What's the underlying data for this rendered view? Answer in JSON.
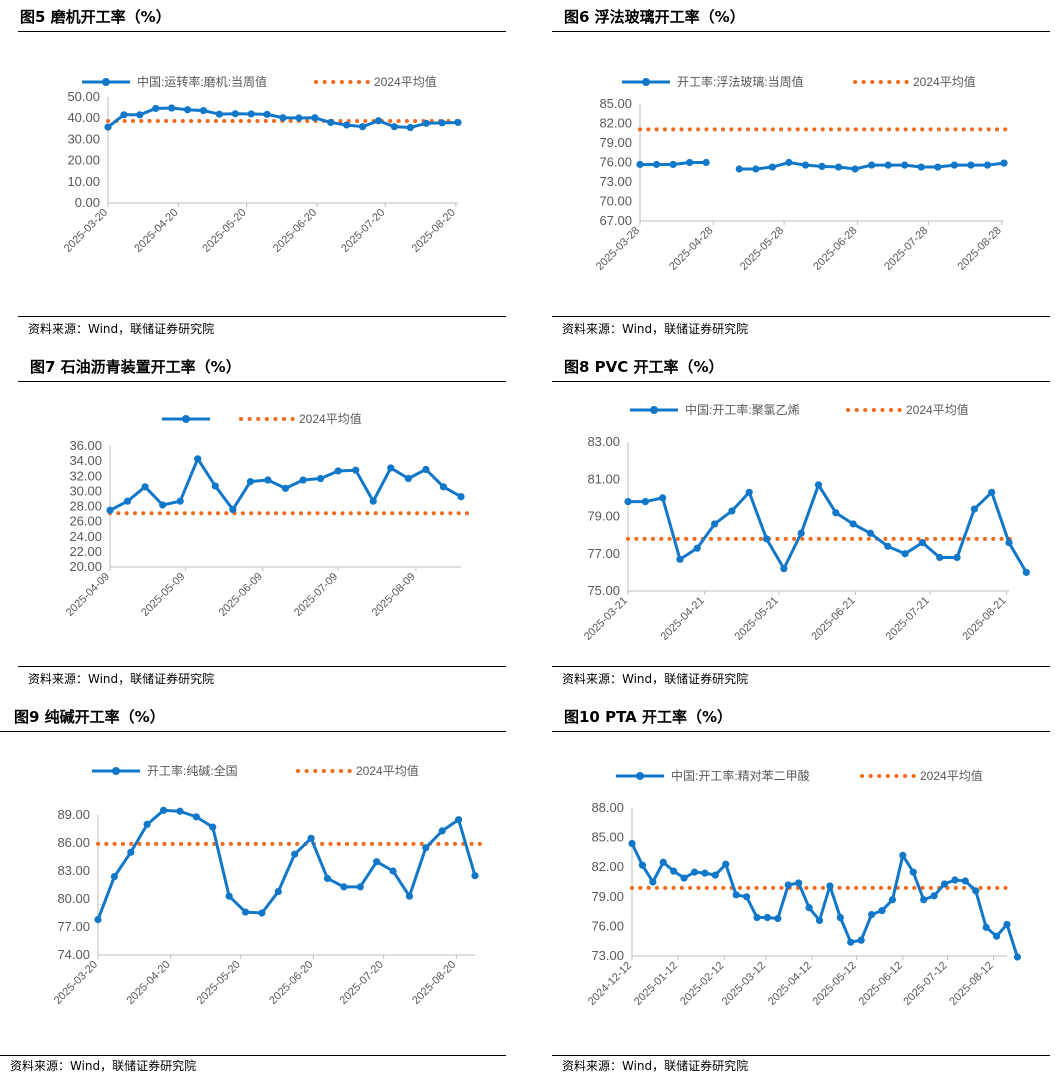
{
  "source_text": "资料来源：Wind，联储证券研究院",
  "colors": {
    "series": "#1177C9",
    "avg": "#F26B1D",
    "axis": "#BFBFBF",
    "text": "#595959"
  },
  "chart_data": [
    {
      "id": "fig5",
      "figure_title": "图5  磨机开工率（%）",
      "type": "line",
      "series_name": "中国:运转率:磨机:当周值",
      "avg_name": "2024平均值",
      "avg_value": 38.7,
      "ylim": [
        0,
        50
      ],
      "yticks": [
        0,
        10,
        20,
        30,
        40,
        50
      ],
      "x_tick_labels": [
        "2025-03-20",
        "2025-04-20",
        "2025-05-20",
        "2025-06-20",
        "2025-07-20",
        "2025-08-20"
      ],
      "x_tick_positions": [
        0,
        4.43,
        8.71,
        13.14,
        17.43,
        21.86
      ],
      "x_end": 22,
      "values": [
        35.8,
        41.6,
        41.6,
        44.6,
        44.8,
        44.0,
        43.6,
        41.9,
        42.1,
        42.0,
        41.8,
        40.2,
        40.1,
        40.2,
        38.0,
        36.8,
        36.0,
        38.8,
        36.0,
        35.6,
        37.6,
        37.8,
        38.0
      ]
    },
    {
      "id": "fig6",
      "figure_title": "图6  浮法玻璃开工率（%）",
      "type": "line",
      "series_name": "开工率:浮法玻璃:当周值",
      "avg_name": "2024平均值",
      "avg_value": 81.1,
      "ylim": [
        67,
        85
      ],
      "yticks": [
        67,
        70,
        73,
        76,
        79,
        82,
        85
      ],
      "x_tick_labels": [
        "2025-03-28",
        "2025-04-28",
        "2025-05-28",
        "2025-06-28",
        "2025-07-28",
        "2025-08-28"
      ],
      "x_tick_positions": [
        0,
        4.43,
        8.71,
        13.14,
        17.43,
        21.86
      ],
      "x_end": 22,
      "values": [
        75.7,
        75.7,
        75.7,
        76.0,
        76.0,
        null,
        75.0,
        75.0,
        75.3,
        76.0,
        75.6,
        75.4,
        75.3,
        75.0,
        75.6,
        75.6,
        75.6,
        75.3,
        75.3,
        75.6,
        75.6,
        75.6,
        75.9
      ]
    },
    {
      "id": "fig7",
      "figure_title": "图7  石油沥青装置开工率（%）",
      "type": "line",
      "series_name": "",
      "avg_name": "2024平均值",
      "avg_value": 27.1,
      "ylim": [
        20,
        36
      ],
      "yticks": [
        20,
        22,
        24,
        26,
        28,
        30,
        32,
        34,
        36
      ],
      "x_tick_labels": [
        "2025-04-09",
        "2025-05-09",
        "2025-06-09",
        "2025-07-09",
        "2025-08-09"
      ],
      "x_tick_positions": [
        0,
        4.29,
        8.71,
        13,
        17.43
      ],
      "x_end": 20,
      "values": [
        27.5,
        28.7,
        30.6,
        28.2,
        28.7,
        34.3,
        30.7,
        27.6,
        31.3,
        31.5,
        30.4,
        31.5,
        31.7,
        32.7,
        32.8,
        28.7,
        33.1,
        31.7,
        32.9,
        30.6,
        29.3
      ]
    },
    {
      "id": "fig8",
      "figure_title": "图8  PVC 开工率（%）",
      "type": "line",
      "series_name": "中国:开工率:聚氯乙烯",
      "avg_name": "2024平均值",
      "avg_value": 77.8,
      "ylim": [
        75,
        83
      ],
      "yticks": [
        75,
        77,
        79,
        81,
        83
      ],
      "x_tick_labels": [
        "2025-03-21",
        "2025-04-21",
        "2025-05-21",
        "2025-06-21",
        "2025-07-21",
        "2025-08-21"
      ],
      "x_tick_positions": [
        0,
        4.43,
        8.71,
        13.14,
        17.43,
        21.86
      ],
      "x_end": 22,
      "values": [
        79.8,
        79.8,
        80.0,
        76.7,
        77.3,
        78.6,
        79.3,
        80.3,
        77.8,
        76.2,
        78.1,
        80.7,
        79.2,
        78.6,
        78.1,
        77.4,
        77.0,
        77.6,
        76.8,
        76.8,
        79.4,
        80.3,
        77.6,
        76.0
      ]
    },
    {
      "id": "fig9",
      "figure_title": "图9  纯碱开工率（%）",
      "type": "line",
      "series_name": "开工率:纯碱:全国",
      "avg_name": "2024平均值",
      "avg_value": 85.9,
      "ylim": [
        74,
        89
      ],
      "yticks": [
        74,
        77,
        80,
        83,
        86,
        89
      ],
      "x_tick_labels": [
        "2025-03-20",
        "2025-04-20",
        "2025-05-20",
        "2025-06-20",
        "2025-07-20",
        "2025-08-20"
      ],
      "x_tick_positions": [
        0,
        4.43,
        8.71,
        13.14,
        17.43,
        21.86
      ],
      "x_end": 23,
      "values": [
        77.8,
        82.4,
        85.0,
        88.0,
        89.5,
        89.4,
        88.8,
        87.7,
        80.3,
        78.6,
        78.5,
        80.8,
        84.8,
        86.5,
        82.2,
        81.3,
        81.3,
        84.0,
        83.0,
        80.3,
        85.5,
        87.3,
        88.5,
        82.5
      ]
    },
    {
      "id": "fig10",
      "figure_title": "图10 PTA 开工率（%）",
      "type": "line",
      "series_name": "中国:开工率:精对苯二甲酸",
      "avg_name": "2024平均值",
      "avg_value": 79.9,
      "ylim": [
        73,
        88
      ],
      "yticks": [
        73,
        76,
        79,
        82,
        85,
        88
      ],
      "x_tick_labels": [
        "2024-12-12",
        "2025-01-12",
        "2025-02-12",
        "2025-03-12",
        "2025-04-12",
        "2025-05-12",
        "2025-06-12",
        "2025-07-12",
        "2025-08-12"
      ],
      "x_tick_positions": [
        0,
        4.43,
        8.86,
        12.86,
        17.29,
        21.57,
        26,
        30.29,
        34.71
      ],
      "x_end": 36,
      "values": [
        84.4,
        82.2,
        80.5,
        82.5,
        81.6,
        80.9,
        81.5,
        81.4,
        81.2,
        82.3,
        79.2,
        79.0,
        76.9,
        76.9,
        76.8,
        80.2,
        80.4,
        77.9,
        76.6,
        80.1,
        76.9,
        74.4,
        74.6,
        77.2,
        77.6,
        78.7,
        83.2,
        81.5,
        78.7,
        79.1,
        80.3,
        80.7,
        80.6,
        79.6,
        75.9,
        75.0,
        76.2,
        72.9
      ]
    }
  ]
}
